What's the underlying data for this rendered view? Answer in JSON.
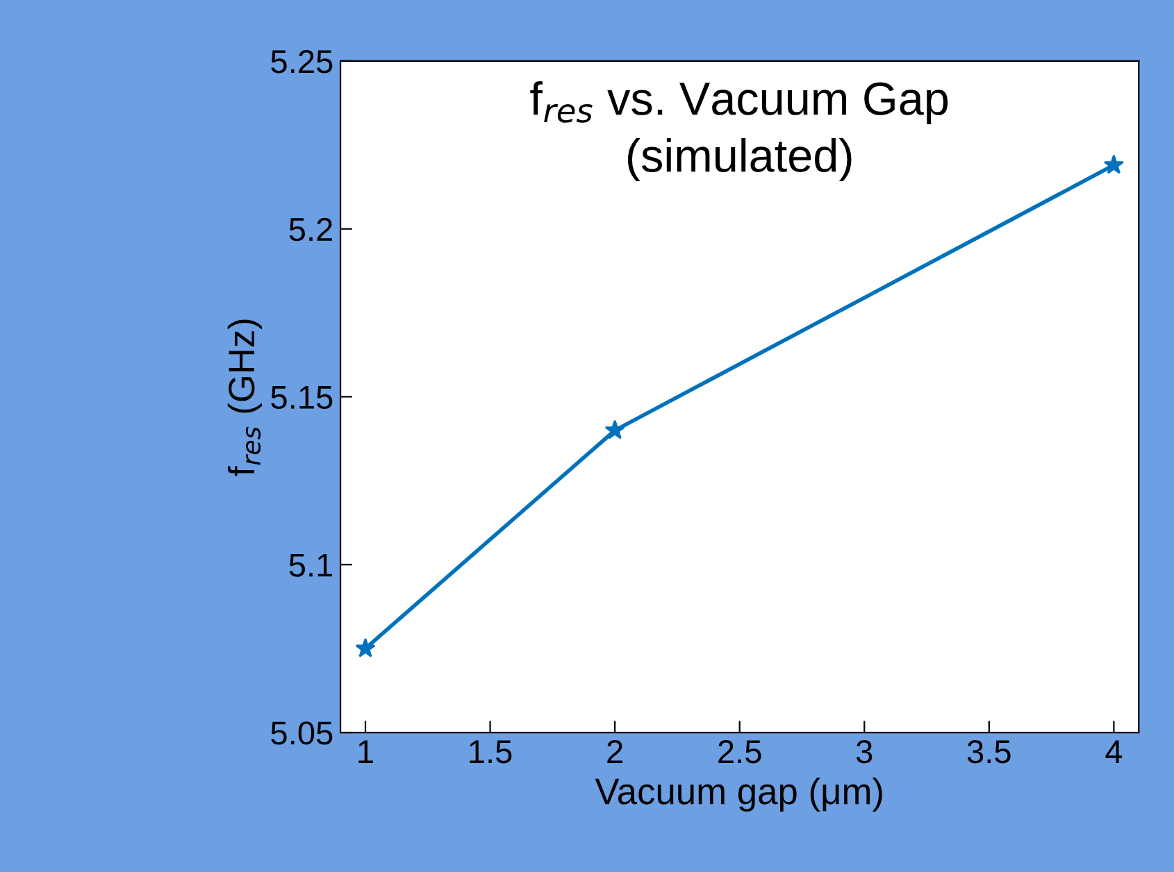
{
  "chart_data": {
    "type": "line",
    "title": "f$_{res}$ vs. Vacuum Gap\n(simulated)",
    "xlabel": "Vacuum gap (μm)",
    "ylabel": "f$_{res}$ (GHz)",
    "x": [
      1,
      2,
      4
    ],
    "series": [
      {
        "color": "#0072bd",
        "values": [
          5.075,
          5.14,
          5.219
        ]
      }
    ],
    "xlim": [
      0.9,
      4.1
    ],
    "xticks": [
      1,
      1.5,
      2,
      2.5,
      3,
      3.5,
      4
    ],
    "ylim": [
      5.05,
      5.25
    ],
    "yticks": [
      5.05,
      5.1,
      5.15,
      5.2,
      5.25
    ],
    "marker": "star",
    "line_style": "solid",
    "grid": false
  }
}
